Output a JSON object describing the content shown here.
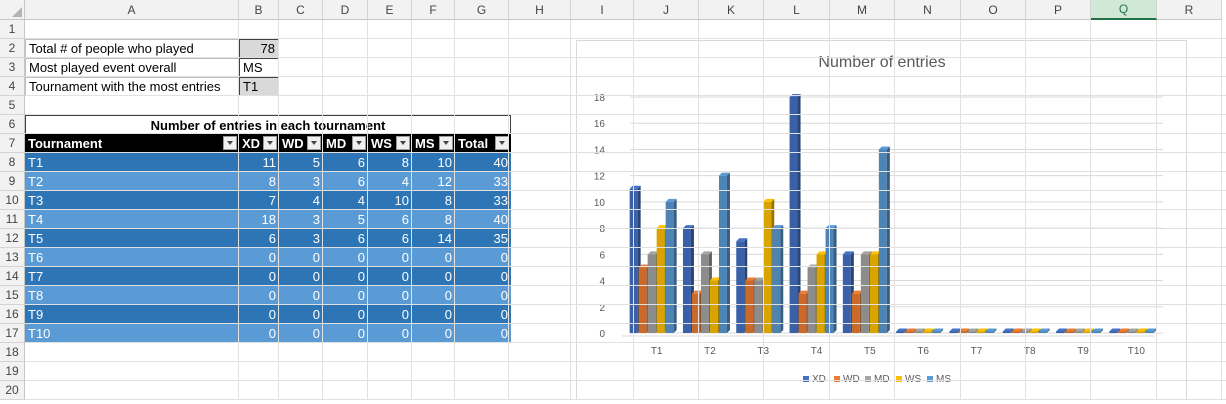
{
  "sheet": {
    "columns": [
      "A",
      "B",
      "C",
      "D",
      "E",
      "F",
      "G",
      "H",
      "I",
      "J",
      "K",
      "L",
      "M",
      "N",
      "O",
      "P",
      "Q",
      "R"
    ],
    "selected_column": "Q",
    "rows": [
      "1",
      "2",
      "3",
      "4",
      "5",
      "6",
      "7",
      "8",
      "9",
      "10",
      "11",
      "12",
      "13",
      "14",
      "15",
      "16",
      "17",
      "18",
      "19",
      "20"
    ]
  },
  "summary": {
    "people_label": "Total # of people who played",
    "people_value": "78",
    "event_label": "Most played event overall",
    "event_value": "MS",
    "tournament_label": "Tournament with the most entries",
    "tournament_value": "T1"
  },
  "table": {
    "title": "Number of entries in each tournament",
    "headers": [
      "Tournament",
      "XD",
      "WD",
      "MD",
      "WS",
      "MS",
      "Total"
    ],
    "rows": [
      [
        "T1",
        "11",
        "5",
        "6",
        "8",
        "10",
        "40"
      ],
      [
        "T2",
        "8",
        "3",
        "6",
        "4",
        "12",
        "33"
      ],
      [
        "T3",
        "7",
        "4",
        "4",
        "10",
        "8",
        "33"
      ],
      [
        "T4",
        "18",
        "3",
        "5",
        "6",
        "8",
        "40"
      ],
      [
        "T5",
        "6",
        "3",
        "6",
        "6",
        "14",
        "35"
      ],
      [
        "T6",
        "0",
        "0",
        "0",
        "0",
        "0",
        "0"
      ],
      [
        "T7",
        "0",
        "0",
        "0",
        "0",
        "0",
        "0"
      ],
      [
        "T8",
        "0",
        "0",
        "0",
        "0",
        "0",
        "0"
      ],
      [
        "T9",
        "0",
        "0",
        "0",
        "0",
        "0",
        "0"
      ],
      [
        "T10",
        "0",
        "0",
        "0",
        "0",
        "0",
        "0"
      ]
    ]
  },
  "chart_data": {
    "type": "bar",
    "title": "Number of entries",
    "categories": [
      "T1",
      "T2",
      "T3",
      "T4",
      "T5",
      "T6",
      "T7",
      "T8",
      "T9",
      "T10"
    ],
    "series": [
      {
        "name": "XD",
        "color": "#4472c4",
        "values": [
          11,
          8,
          7,
          18,
          6,
          0,
          0,
          0,
          0,
          0
        ]
      },
      {
        "name": "WD",
        "color": "#ed7d31",
        "values": [
          5,
          3,
          4,
          3,
          3,
          0,
          0,
          0,
          0,
          0
        ]
      },
      {
        "name": "MD",
        "color": "#a5a5a5",
        "values": [
          6,
          6,
          4,
          5,
          6,
          0,
          0,
          0,
          0,
          0
        ]
      },
      {
        "name": "WS",
        "color": "#ffc000",
        "values": [
          8,
          4,
          10,
          6,
          6,
          0,
          0,
          0,
          0,
          0
        ]
      },
      {
        "name": "MS",
        "color": "#5b9bd5",
        "values": [
          10,
          12,
          8,
          8,
          14,
          0,
          0,
          0,
          0,
          0
        ]
      }
    ],
    "ylim": [
      0,
      18
    ],
    "yticks": [
      "0",
      "2",
      "4",
      "6",
      "8",
      "10",
      "12",
      "14",
      "16",
      "18"
    ],
    "grid": true,
    "legend": "bottom",
    "style": "3d-clustered-column"
  }
}
